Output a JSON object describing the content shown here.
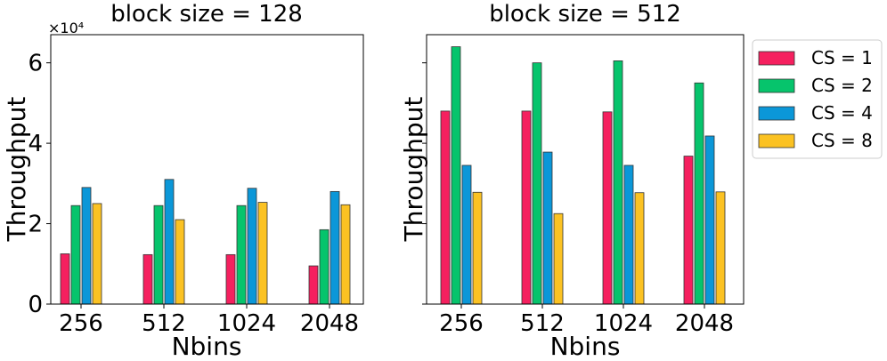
{
  "chart_data": [
    {
      "type": "bar",
      "title": "block size = 128",
      "xlabel": "Nbins",
      "ylabel": "Throughput",
      "y_multiplier": "×10⁴",
      "categories": [
        "256",
        "512",
        "1024",
        "2048"
      ],
      "ylim": [
        0,
        67000
      ],
      "yticks": [
        0,
        20000,
        40000,
        60000
      ],
      "ytick_labels": [
        "0",
        "2",
        "4",
        "6"
      ],
      "series": [
        {
          "name": "CS = 1",
          "color": "#f5205f",
          "values": [
            12500,
            12300,
            12300,
            9500
          ]
        },
        {
          "name": "CS = 2",
          "color": "#06c46c",
          "values": [
            24500,
            24500,
            24500,
            18500
          ]
        },
        {
          "name": "CS = 4",
          "color": "#0b97d8",
          "values": [
            29000,
            31000,
            28800,
            28000
          ]
        },
        {
          "name": "CS = 8",
          "color": "#fbc223",
          "values": [
            25000,
            21000,
            25300,
            24700
          ]
        }
      ]
    },
    {
      "type": "bar",
      "title": "block size = 512",
      "xlabel": "Nbins",
      "ylabel": "Throughput",
      "categories": [
        "256",
        "512",
        "1024",
        "2048"
      ],
      "ylim": [
        0,
        67000
      ],
      "yticks": [
        0,
        20000,
        40000,
        60000
      ],
      "ytick_labels": [
        "",
        "",
        "",
        ""
      ],
      "legend": {
        "position": "outside-right",
        "entries": [
          "CS = 1",
          "CS = 2",
          "CS = 4",
          "CS = 8"
        ]
      },
      "series": [
        {
          "name": "CS = 1",
          "color": "#f5205f",
          "values": [
            48000,
            48000,
            47800,
            36800
          ]
        },
        {
          "name": "CS = 2",
          "color": "#06c46c",
          "values": [
            64000,
            60000,
            60500,
            55000
          ]
        },
        {
          "name": "CS = 4",
          "color": "#0b97d8",
          "values": [
            34500,
            37800,
            34500,
            41800
          ]
        },
        {
          "name": "CS = 8",
          "color": "#fbc223",
          "values": [
            27800,
            22500,
            27700,
            27900
          ]
        }
      ]
    }
  ]
}
